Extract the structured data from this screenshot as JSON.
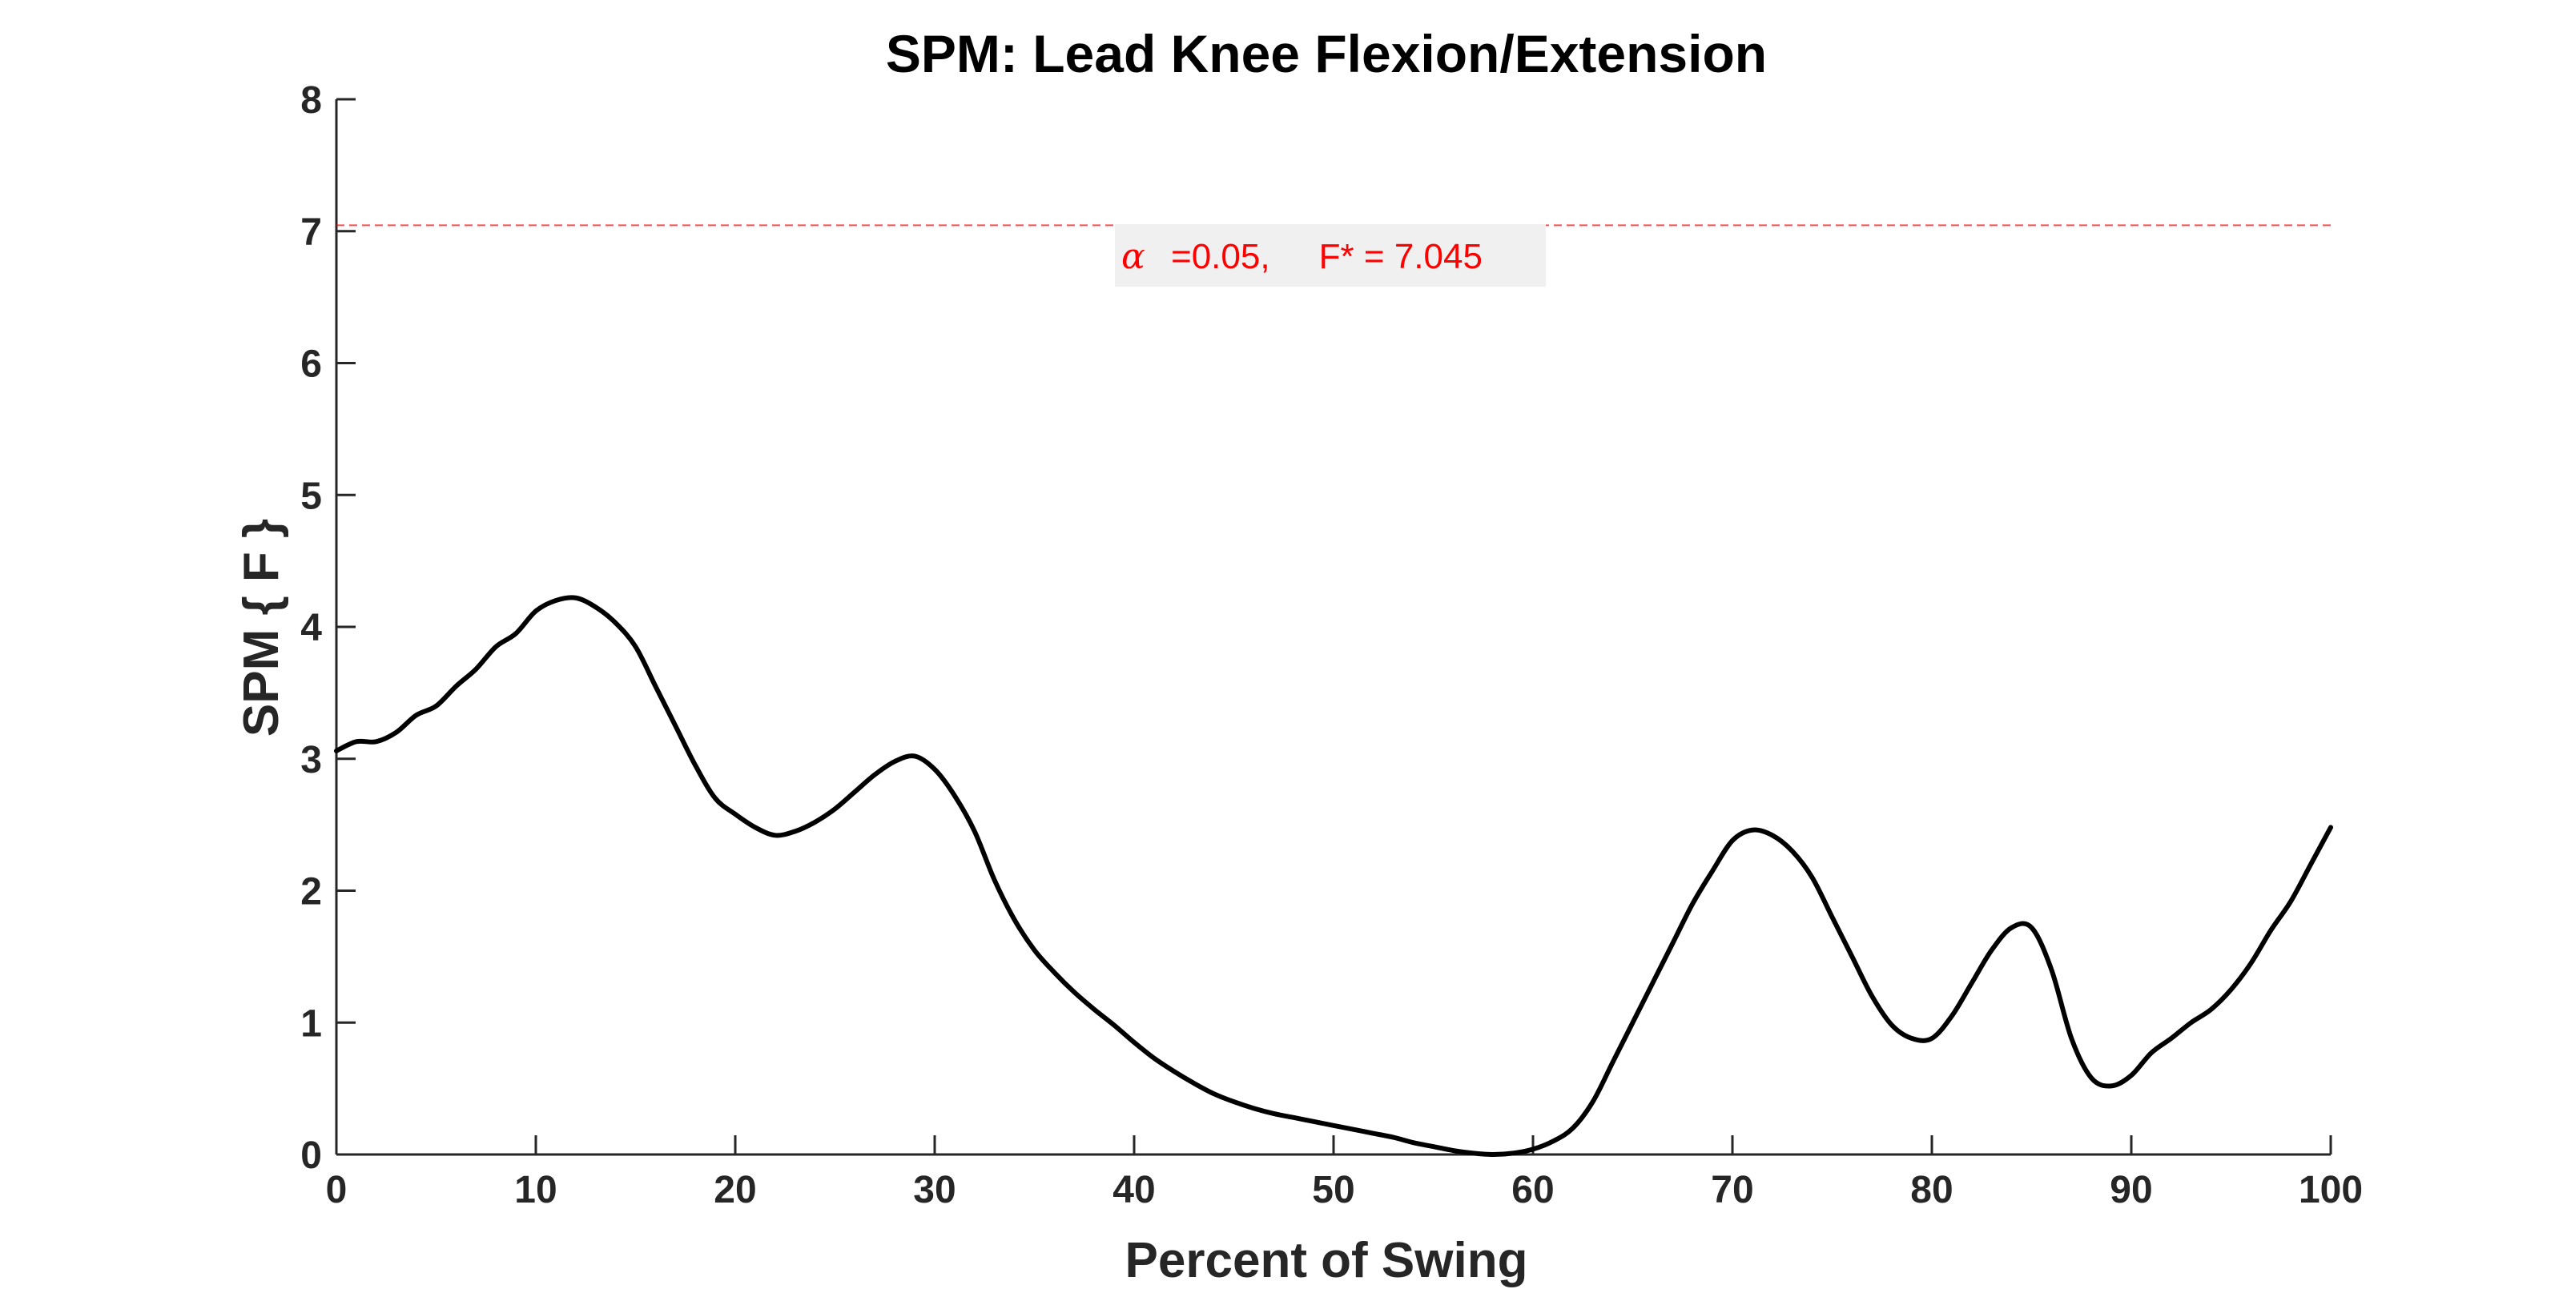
{
  "chart_data": {
    "type": "line",
    "title": "SPM: Lead Knee Flexion/Extension",
    "xlabel": "Percent of Swing",
    "ylabel": "SPM { F }",
    "xlim": [
      0,
      100
    ],
    "ylim": [
      0,
      8
    ],
    "x_ticks": [
      "0",
      "10",
      "20",
      "30",
      "40",
      "50",
      "60",
      "70",
      "80",
      "90",
      "100"
    ],
    "y_ticks": [
      "0",
      "1",
      "2",
      "3",
      "4",
      "5",
      "6",
      "7",
      "8"
    ],
    "grid": false,
    "threshold": {
      "value": 7.045,
      "alpha_symbol": "α",
      "label": "=0.05,     F* = 7.045",
      "color": "#ff0000"
    },
    "line_color": "#000000",
    "series": [
      {
        "x": [
          0,
          1,
          2,
          3,
          4,
          5,
          6,
          7,
          8,
          9,
          10,
          11,
          12,
          13,
          14,
          15,
          16,
          17,
          18,
          19,
          20,
          21,
          22,
          23,
          24,
          25,
          26,
          27,
          28,
          29,
          30,
          31,
          32,
          33,
          34,
          35,
          36,
          37,
          38,
          39,
          40,
          41,
          42,
          43,
          44,
          45,
          46,
          47,
          48,
          49,
          50,
          51,
          52,
          53,
          54,
          55,
          56,
          57,
          58,
          59,
          60,
          61,
          62,
          63,
          64,
          65,
          66,
          67,
          68,
          69,
          70,
          71,
          72,
          73,
          74,
          75,
          76,
          77,
          78,
          79,
          80,
          81,
          82,
          83,
          84,
          85,
          86,
          87,
          88,
          89,
          90,
          91,
          92,
          93,
          94,
          95,
          96,
          97,
          98,
          99,
          100
        ],
        "y": [
          3.06,
          3.13,
          3.13,
          3.2,
          3.33,
          3.4,
          3.55,
          3.68,
          3.85,
          3.95,
          4.12,
          4.2,
          4.22,
          4.15,
          4.03,
          3.85,
          3.55,
          3.25,
          2.95,
          2.7,
          2.58,
          2.48,
          2.42,
          2.45,
          2.52,
          2.62,
          2.75,
          2.88,
          2.98,
          3.02,
          2.92,
          2.72,
          2.45,
          2.08,
          1.78,
          1.55,
          1.38,
          1.23,
          1.1,
          0.98,
          0.85,
          0.73,
          0.63,
          0.54,
          0.46,
          0.4,
          0.35,
          0.31,
          0.28,
          0.25,
          0.22,
          0.19,
          0.16,
          0.13,
          0.09,
          0.06,
          0.03,
          0.01,
          0.0,
          0.01,
          0.04,
          0.1,
          0.2,
          0.4,
          0.7,
          1.0,
          1.3,
          1.6,
          1.9,
          2.15,
          2.38,
          2.46,
          2.42,
          2.3,
          2.1,
          1.8,
          1.5,
          1.2,
          0.98,
          0.88,
          0.88,
          1.05,
          1.3,
          1.55,
          1.72,
          1.72,
          1.4,
          0.88,
          0.58,
          0.52,
          0.6,
          0.77,
          0.88,
          1.0,
          1.1,
          1.25,
          1.45,
          1.7,
          1.92,
          2.2,
          2.48
        ]
      }
    ]
  }
}
